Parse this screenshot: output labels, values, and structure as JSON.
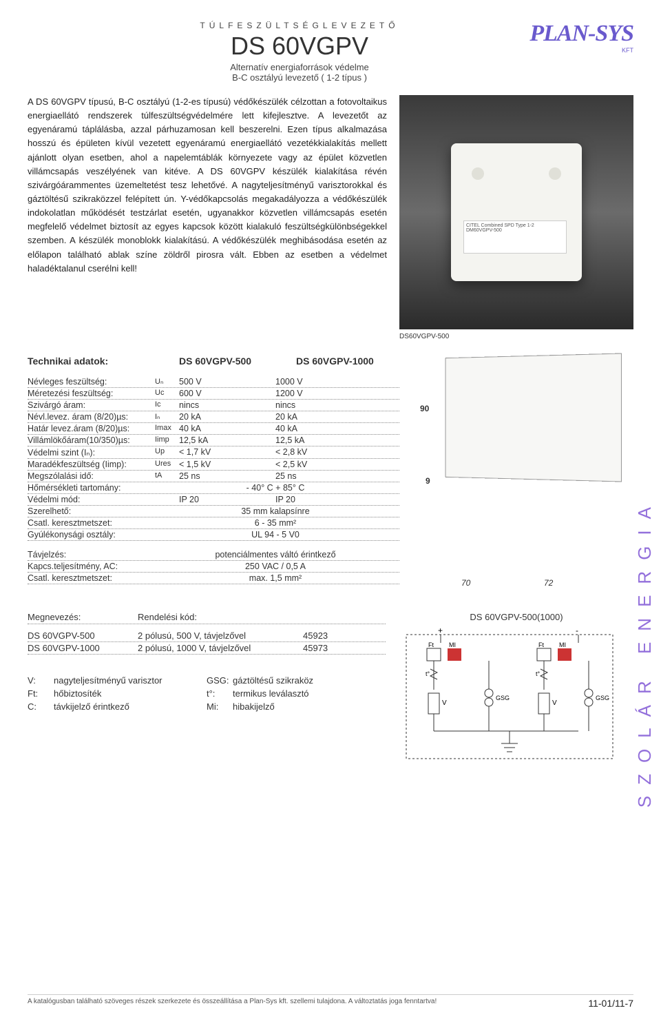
{
  "header": {
    "overline": "TÚLFESZÜLTSÉGLEVEZETŐ",
    "title": "DS 60VGPV",
    "subtitle1": "Alternatív energiaforrások védelme",
    "subtitle2": "B-C osztályú levezető ( 1-2 típus )",
    "logo_text": "PLAN-SYS",
    "logo_sub": "KFT"
  },
  "intro": "A DS 60VGPV típusú, B-C osztályú (1-2-es típusú) védőkészülék célzottan a fotovoltaikus energiaellátó rendszerek túlfeszültségvédelmére lett kifejlesztve. A levezetőt az egyenáramú táplálásba, azzal párhuzamosan kell beszerelni. Ezen típus alkalmazása hosszú és épületen kívül vezetett egyenáramú energiaellátó vezetékkialakítás mellett ajánlott olyan esetben, ahol a napelemtáblák környezete vagy az épület közvetlen villámcsapás veszélyének van kitéve. A DS 60VGPV készülék kialakítása révén szivárgóárammentes üzemeltetést tesz lehetővé. A nagyteljesítményű varisztorokkal és gáztöltésű szikraközzel felépített ún. Y-védőkapcsolás megakadályozza a védőkészülék indokolatlan működését testzárlat esetén, ugyanakkor közvetlen villámcsapás esetén megfelelő védelmet biztosít az egyes kapcsok között kialakuló feszültségkülönbségekkel szemben. A készülék monoblokk kialakítású. A védőkészülék meghibásodása esetén az előlapon található ablak színe zöldről pirosra vált. Ebben az esetben a védelmet haladéktalanul cserélni kell!",
  "img_caption": "DS60VGPV-500",
  "tech": {
    "heading": "Technikai adatok:",
    "col1": "DS 60VGPV-500",
    "col2": "DS 60VGPV-1000",
    "rows": [
      {
        "label": "Névleges feszültség:",
        "sym": "Uₙ",
        "v1": "500 V",
        "v2": "1000 V"
      },
      {
        "label": "Méretezési feszültség:",
        "sym": "Uc",
        "v1": "600 V",
        "v2": "1200 V"
      },
      {
        "label": "Szivárgó áram:",
        "sym": "Ic",
        "v1": "nincs",
        "v2": "nincs"
      },
      {
        "label": "Névl.levez. áram (8/20)µs:",
        "sym": "Iₙ",
        "v1": "20 kA",
        "v2": "20 kA"
      },
      {
        "label": "Határ levez.áram (8/20)µs:",
        "sym": "Imax",
        "v1": "40 kA",
        "v2": "40 kA"
      },
      {
        "label": "Villámlökőáram(10/350)µs:",
        "sym": "Iimp",
        "v1": "12,5 kA",
        "v2": "12,5 kA"
      },
      {
        "label": "Védelmi szint (Iₙ):",
        "sym": "Up",
        "v1": "< 1,7 kV",
        "v2": "< 2,8 kV"
      },
      {
        "label": "Maradékfeszültség (Iimp):",
        "sym": "Ures",
        "v1": "< 1,5 kV",
        "v2": "< 2,5 kV"
      },
      {
        "label": "Megszólalási idő:",
        "sym": "tA",
        "v1": "25 ns",
        "v2": "25 ns"
      },
      {
        "label": "Hőmérsékleti tartomány:",
        "sym": "",
        "v1": "- 40° C  + 85° C",
        "wide": true
      },
      {
        "label": "Védelmi mód:",
        "sym": "",
        "v1": "IP 20",
        "v2": "IP 20"
      },
      {
        "label": "Szerelhető:",
        "sym": "",
        "v1": "35 mm kalapsínre",
        "wide": true
      },
      {
        "label": "Csatl. keresztmetszet:",
        "sym": "",
        "v1": "6 - 35 mm²",
        "wide": true
      },
      {
        "label": "Gyúlékonysági osztály:",
        "sym": "",
        "v1": "UL 94 - 5 V0",
        "wide": true
      }
    ],
    "rows2": [
      {
        "label": "Távjelzés:",
        "v1": "potenciálmentes váltó érintkező",
        "wide": true
      },
      {
        "label": "Kapcs.teljesítmény, AC:",
        "v1": "250 VAC / 0,5 A",
        "wide": true
      },
      {
        "label": "Csatl. keresztmetszet:",
        "v1": "max. 1,5 mm²",
        "wide": true
      }
    ]
  },
  "dims": {
    "d90": "90",
    "d9": "9",
    "d70": "70",
    "d72": "72"
  },
  "order": {
    "h1": "Megnevezés:",
    "h2": "Rendelési kód:",
    "rows": [
      {
        "name": "DS 60VGPV-500",
        "desc": "2 pólusú, 500 V, távjelzővel",
        "code": "45923"
      },
      {
        "name": "DS 60VGPV-1000",
        "desc": "2 pólusú, 1000 V, távjelzővel",
        "code": "45973"
      }
    ]
  },
  "legend": [
    {
      "k": "V:",
      "t": "nagyteljesítményű varisztor"
    },
    {
      "k": "GSG:",
      "t": "gáztöltésű szikraköz"
    },
    {
      "k": "Ft:",
      "t": "hőbiztosíték"
    },
    {
      "k": "t°:",
      "t": "termikus leválasztó"
    },
    {
      "k": "C:",
      "t": "távkijelző érintkező"
    },
    {
      "k": "Mi:",
      "t": "hibakijelző"
    }
  ],
  "circuit_title": "DS 60VGPV-500(1000)",
  "side_text": "SZOLÁR ENERGIA",
  "footer": {
    "disclaimer": "A katalógusban található szöveges részek szerkezete és összeállítása a Plan-Sys kft. szellemi tulajdona. A változtatás joga fenntartva!",
    "page": "11-01/11-7"
  },
  "colors": {
    "accent": "#6a5acd",
    "side": "#9370db",
    "text": "#333333",
    "dotted": "#888888"
  }
}
